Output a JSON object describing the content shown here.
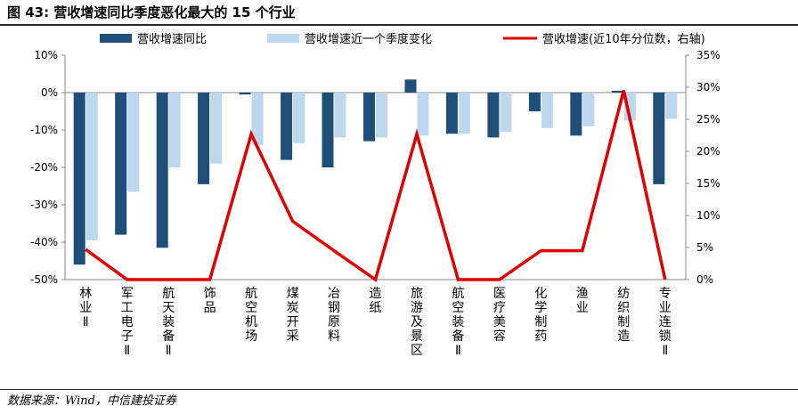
{
  "figure": {
    "title": "图 43: 营收增速同比季度恶化最大的 15 个行业",
    "source": "数据来源：Wind，中信建投证券"
  },
  "colors": {
    "series_dark": "#1f4e79",
    "series_light": "#bdd7ee",
    "series_line": "#e00000",
    "rule": "#2a2a2a",
    "axis": "#888888"
  },
  "chart_data": {
    "type": "bar",
    "categories": [
      "林业Ⅱ",
      "军工电子Ⅱ",
      "航天装备Ⅱ",
      "饰品",
      "航空机场",
      "煤炭开采",
      "冶钢原料",
      "造纸",
      "旅游及景区",
      "航空装备Ⅱ",
      "医疗美容",
      "化学制药",
      "渔业",
      "纺织制造",
      "专业连锁Ⅱ"
    ],
    "series": [
      {
        "name": "营收增速同比",
        "kind": "bar",
        "axis": "left",
        "color": "#1f4e79",
        "values": [
          -46,
          -38,
          -41.5,
          -24.5,
          -0.5,
          -18,
          -20,
          -13,
          3.5,
          -11,
          -12,
          -5,
          -11.5,
          0.5,
          -24.5
        ]
      },
      {
        "name": "营收增速近一个季度变化",
        "kind": "bar",
        "axis": "left",
        "color": "#bdd7ee",
        "values": [
          -39.5,
          -26.5,
          -20,
          -19,
          -14,
          -13.5,
          -12,
          -12,
          -11.5,
          -11,
          -10.5,
          -9.5,
          -9,
          -7.5,
          -7
        ]
      },
      {
        "name": "营收增速(近10年分位数，右轴)",
        "kind": "line",
        "axis": "right",
        "color": "#e00000",
        "values": [
          4.7,
          0,
          0,
          0,
          22.7,
          9.1,
          4.5,
          0,
          22.7,
          0,
          0,
          4.5,
          4.5,
          29.5,
          0
        ]
      }
    ],
    "y_left": {
      "min": -50,
      "max": 10,
      "ticks": [
        "10%",
        "0%",
        "-10%",
        "-20%",
        "-30%",
        "-40%",
        "-50%"
      ]
    },
    "y_right": {
      "min": 0,
      "max": 35,
      "ticks": [
        "35%",
        "30%",
        "25%",
        "20%",
        "15%",
        "10%",
        "5%",
        "0%"
      ]
    },
    "legend": "top",
    "grid": false
  }
}
